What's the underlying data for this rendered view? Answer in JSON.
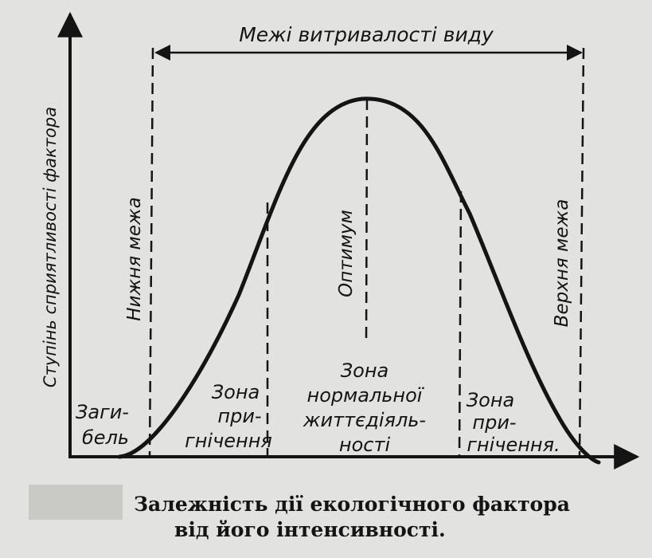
{
  "diagram": {
    "top_label": "Межі витривалості виду",
    "y_axis_label": "Ступінь сприятливості фактора",
    "lower_limit": "Нижня межа",
    "upper_limit": "Верхня межа",
    "optimum": "Оптимум",
    "zones": {
      "death": [
        "Заги-",
        "бель"
      ],
      "oppression_left": [
        "Зона",
        "при-",
        "гнічення"
      ],
      "normal": [
        "Зона",
        "нормальної",
        "життєдіяль-",
        "ності"
      ],
      "oppression_right": [
        "Зона",
        "при-",
        "гнічення."
      ]
    },
    "caption": [
      "Залежність дії екологічного фактора",
      "від його інтенсивності."
    ],
    "colors": {
      "ink": "#141414",
      "paper": "#e2e2e0",
      "mask": "#c9c9c6"
    }
  }
}
